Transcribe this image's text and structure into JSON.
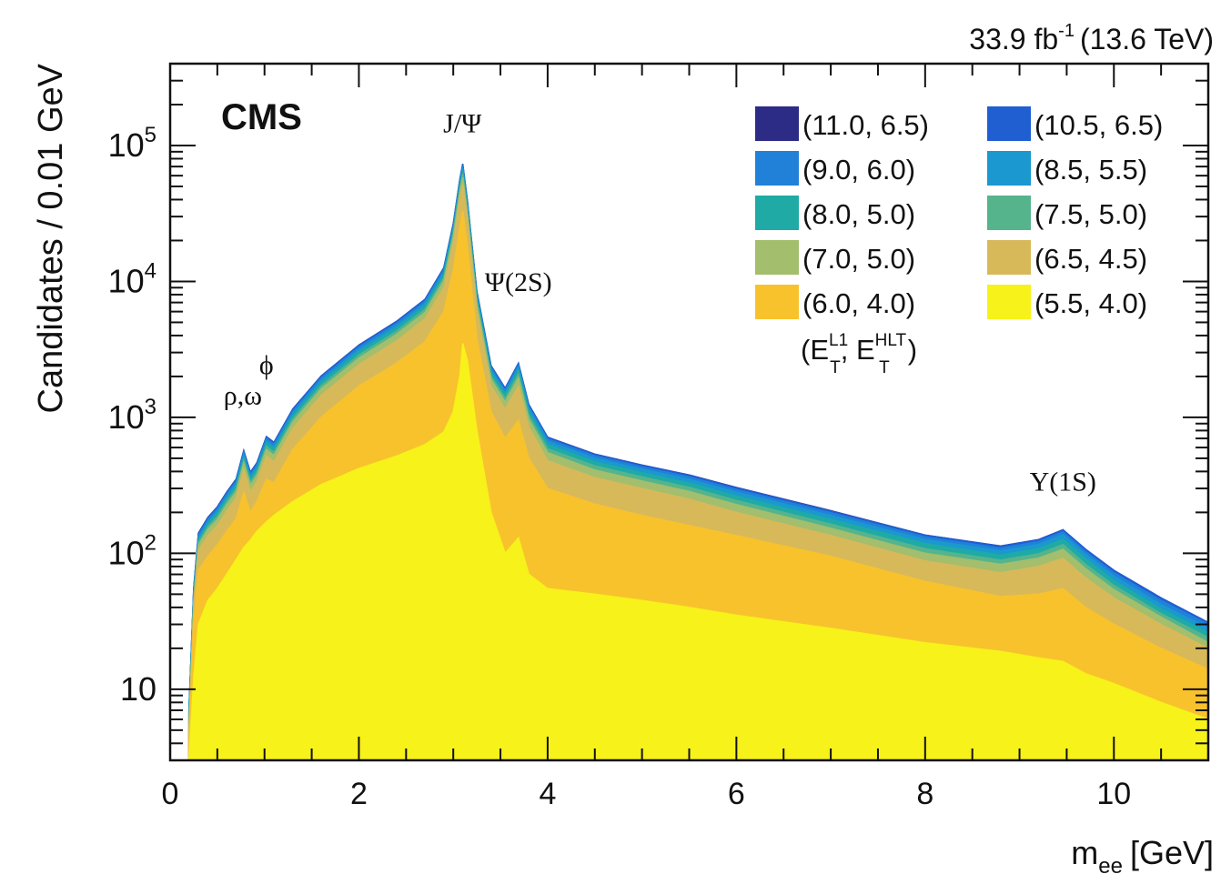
{
  "chart_data": {
    "type": "area",
    "stacked": true,
    "experiment_label": "CMS",
    "luminosity_label": "33.9 fb",
    "luminosity_sup": "-1",
    "energy_label": "(13.6 TeV)",
    "xlabel": "m",
    "xlabel_sub": "ee",
    "xlabel_unit": "[GeV]",
    "ylabel": "Candidates / 0.01 GeV",
    "xlim": [
      0,
      11
    ],
    "ylim": [
      3,
      400000
    ],
    "y_scale": "log",
    "x_ticks": [
      0,
      2,
      4,
      6,
      8,
      10
    ],
    "x_tick_labels": [
      "0",
      "2",
      "4",
      "6",
      "8",
      "10"
    ],
    "y_ticks": [
      10,
      100,
      1000,
      10000,
      100000
    ],
    "y_tick_labels": [
      {
        "base": "10",
        "exp": ""
      },
      {
        "base": "10",
        "exp": "2"
      },
      {
        "base": "10",
        "exp": "3"
      },
      {
        "base": "10",
        "exp": "4"
      },
      {
        "base": "10",
        "exp": "5"
      }
    ],
    "legend_title_prefix": "(E",
    "legend_title_sup1": "L1",
    "legend_title_sub1": "T",
    "legend_title_mid": ", E",
    "legend_title_sup2": "HLT",
    "legend_title_sub2": "T",
    "legend_title_suffix": ")",
    "legend_position": "top-right",
    "x": [
      0.2,
      0.25,
      0.3,
      0.4,
      0.5,
      0.6,
      0.7,
      0.78,
      0.85,
      0.92,
      1.02,
      1.1,
      1.3,
      1.6,
      2.0,
      2.4,
      2.7,
      2.9,
      3.0,
      3.07,
      3.1,
      3.15,
      3.25,
      3.4,
      3.55,
      3.69,
      3.8,
      4.0,
      4.5,
      5.0,
      5.5,
      6.0,
      7.0,
      8.0,
      8.8,
      9.2,
      9.46,
      9.7,
      10.0,
      10.5,
      11.0
    ],
    "series": [
      {
        "name": "(5.5, 4.0)",
        "color": "#f6f21a",
        "values": [
          3,
          12,
          30,
          45,
          55,
          70,
          90,
          110,
          125,
          145,
          170,
          190,
          240,
          320,
          420,
          520,
          630,
          780,
          1100,
          2000,
          3500,
          2600,
          800,
          200,
          100,
          130,
          70,
          55,
          50,
          45,
          40,
          35,
          28,
          22,
          19,
          17,
          16,
          13,
          11,
          8,
          6
        ]
      },
      {
        "name": "(6.0, 4.0)",
        "color": "#f8c22d",
        "values": [
          4,
          30,
          75,
          95,
          115,
          145,
          180,
          280,
          200,
          240,
          350,
          330,
          580,
          1000,
          1700,
          2500,
          3600,
          6000,
          12000,
          25000,
          33000,
          18000,
          3800,
          1100,
          700,
          950,
          500,
          300,
          230,
          190,
          160,
          135,
          95,
          62,
          48,
          50,
          55,
          40,
          30,
          20,
          14
        ]
      },
      {
        "name": "(6.5, 4.5)",
        "color": "#d7b95a",
        "values": [
          5,
          40,
          105,
          135,
          160,
          205,
          255,
          410,
          285,
          335,
          520,
          470,
          830,
          1450,
          2450,
          3650,
          5300,
          9000,
          19000,
          40000,
          52000,
          28000,
          6000,
          1700,
          1150,
          1700,
          850,
          480,
          360,
          300,
          250,
          200,
          135,
          88,
          72,
          80,
          92,
          66,
          47,
          30,
          20
        ]
      },
      {
        "name": "(7.0, 5.0)",
        "color": "#a3be6d",
        "values": [
          5,
          44,
          115,
          150,
          178,
          228,
          283,
          458,
          318,
          373,
          580,
          525,
          925,
          1620,
          2730,
          4080,
          5920,
          10100,
          21300,
          45000,
          58500,
          31400,
          6750,
          1910,
          1300,
          1950,
          970,
          550,
          410,
          340,
          285,
          228,
          153,
          100,
          83,
          92,
          107,
          77,
          54,
          34,
          22
        ]
      },
      {
        "name": "(7.5, 5.0)",
        "color": "#56b48c",
        "values": [
          6,
          46,
          120,
          157,
          187,
          240,
          298,
          482,
          335,
          393,
          610,
          553,
          975,
          1705,
          2875,
          4300,
          6240,
          10650,
          22450,
          47500,
          61800,
          33200,
          7130,
          2020,
          1380,
          2080,
          1035,
          588,
          440,
          365,
          306,
          245,
          164,
          108,
          89,
          99,
          116,
          83,
          58,
          36,
          24
        ]
      },
      {
        "name": "(8.0, 5.0)",
        "color": "#1faaa5",
        "values": [
          6,
          49,
          126,
          165,
          197,
          253,
          315,
          508,
          353,
          415,
          645,
          585,
          1030,
          1800,
          3040,
          4545,
          6600,
          11260,
          23750,
          50300,
          65400,
          35150,
          7550,
          2140,
          1465,
          2220,
          1105,
          630,
          472,
          392,
          329,
          264,
          178,
          118,
          97,
          108,
          127,
          91,
          63,
          39,
          26
        ]
      },
      {
        "name": "(8.5, 5.5)",
        "color": "#1a98cf",
        "values": [
          7,
          51,
          131,
          172,
          205,
          263,
          328,
          530,
          368,
          433,
          673,
          610,
          1075,
          1880,
          3175,
          4748,
          6895,
          11765,
          24820,
          52560,
          68340,
          36740,
          7890,
          2240,
          1530,
          2330,
          1160,
          665,
          500,
          415,
          350,
          282,
          190,
          126,
          104,
          116,
          137,
          98,
          68,
          42,
          28
        ]
      },
      {
        "name": "(9.0, 6.0)",
        "color": "#2181d9",
        "values": [
          7,
          53,
          136,
          178,
          213,
          273,
          341,
          551,
          383,
          450,
          700,
          635,
          1118,
          1955,
          3302,
          4938,
          7170,
          12235,
          25810,
          54660,
          71070,
          38210,
          8205,
          2330,
          1590,
          2425,
          1207,
          693,
          521,
          432,
          365,
          295,
          199,
          132,
          109,
          122,
          144,
          103,
          72,
          45,
          30
        ]
      },
      {
        "name": "(10.5, 6.5)",
        "color": "#1f5fd2",
        "values": [
          7,
          55,
          140,
          183,
          219,
          281,
          351,
          567,
          394,
          463,
          720,
          653,
          1150,
          2010,
          3395,
          5078,
          7372,
          12580,
          26540,
          56200,
          73080,
          39290,
          8437,
          2396,
          1635,
          2495,
          1242,
          713,
          536,
          445,
          376,
          304,
          205,
          136,
          113,
          126,
          149,
          107,
          75,
          47,
          31
        ]
      },
      {
        "name": "(11.0, 6.5)",
        "color": "#2c2b85",
        "values": [
          7,
          55,
          141,
          184,
          220,
          282,
          352,
          569,
          395,
          464,
          722,
          655,
          1153,
          2015,
          3404,
          5091,
          7391,
          12612,
          26610,
          56345,
          73270,
          39390,
          8459,
          2402,
          1639,
          2502,
          1245,
          715,
          537,
          446,
          377,
          305,
          206,
          136,
          113,
          126,
          149,
          107,
          75,
          47,
          31
        ]
      }
    ],
    "legend_order": [
      "(11.0, 6.5)",
      "(10.5, 6.5)",
      "(9.0, 6.0)",
      "(8.5, 5.5)",
      "(8.0, 5.0)",
      "(7.5, 5.0)",
      "(7.0, 5.0)",
      "(6.5, 4.5)",
      "(6.0, 4.0)",
      "(5.5, 4.0)"
    ],
    "annotations": [
      {
        "id": "jpsi",
        "text": "J/Ψ",
        "x": 3.097,
        "y": 125000
      },
      {
        "id": "psi2s",
        "text": "Ψ(2S)",
        "x": 3.69,
        "y": 8500
      },
      {
        "id": "rho",
        "text": "ρ,ω",
        "x": 0.77,
        "y": 1250
      },
      {
        "id": "phi",
        "text": "ϕ",
        "x": 1.02,
        "y": 2100
      },
      {
        "id": "upsilon",
        "text": "Υ(1S)",
        "x": 9.46,
        "y": 290
      }
    ]
  }
}
